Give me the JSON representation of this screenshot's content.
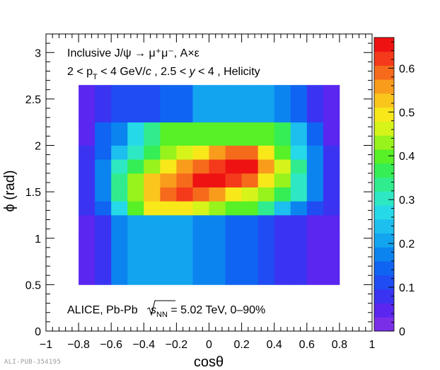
{
  "figure_id": "ALI-PUB-354195",
  "chart_data": {
    "type": "heatmap",
    "title": "",
    "annotations": {
      "line1": "Inclusive J/ψ → μ⁺μ⁻, A×ε",
      "line2_a": "2 < p",
      "line2_sub": "T",
      "line2_b": " < 4 GeV/",
      "line2_c": "c",
      "line2_d": " , 2.5 < ",
      "line2_e": "y",
      "line2_f": " < 4 , Helicity",
      "bottom_a": "ALICE, Pb-Pb ",
      "bottom_s": "s",
      "bottom_sub": "NN",
      "bottom_b": " = 5.02 TeV, 0–90%"
    },
    "xlabel": "cosθ",
    "ylabel": "ϕ (rad)",
    "xlim": [
      -1,
      1
    ],
    "ylim": [
      0,
      3.2
    ],
    "zlim": [
      0,
      0.67
    ],
    "x_ticks": [
      {
        "v": -1,
        "label": "−1"
      },
      {
        "v": -0.8,
        "label": "−0.8"
      },
      {
        "v": -0.6,
        "label": "−0.6"
      },
      {
        "v": -0.4,
        "label": "−0.4"
      },
      {
        "v": -0.2,
        "label": "−0.2"
      },
      {
        "v": 0,
        "label": "0"
      },
      {
        "v": 0.2,
        "label": "0.2"
      },
      {
        "v": 0.4,
        "label": "0.4"
      },
      {
        "v": 0.6,
        "label": "0.6"
      },
      {
        "v": 0.8,
        "label": "0.8"
      },
      {
        "v": 1,
        "label": "1"
      }
    ],
    "y_ticks": [
      {
        "v": 0,
        "label": "0"
      },
      {
        "v": 0.5,
        "label": "0.5"
      },
      {
        "v": 1,
        "label": "1"
      },
      {
        "v": 1.5,
        "label": "1.5"
      },
      {
        "v": 2,
        "label": "2"
      },
      {
        "v": 2.5,
        "label": "2.5"
      },
      {
        "v": 3,
        "label": "3"
      }
    ],
    "z_ticks": [
      {
        "v": 0,
        "label": "0"
      },
      {
        "v": 0.1,
        "label": "0.1"
      },
      {
        "v": 0.2,
        "label": "0.2"
      },
      {
        "v": 0.3,
        "label": "0.3"
      },
      {
        "v": 0.4,
        "label": "0.4"
      },
      {
        "v": 0.5,
        "label": "0.5"
      },
      {
        "v": 0.6,
        "label": "0.6"
      }
    ],
    "x_edges": [
      -0.8,
      -0.7,
      -0.6,
      -0.5,
      -0.4,
      -0.3,
      -0.2,
      -0.1,
      0.0,
      0.1,
      0.2,
      0.3,
      0.4,
      0.5,
      0.6,
      0.7,
      0.8
    ],
    "y_bins": [
      {
        "lo": 0.5,
        "hi": 1.0,
        "values": [
          0.05,
          0.09,
          0.18,
          0.22,
          0.22,
          0.22,
          0.22,
          0.18,
          0.18,
          0.14,
          0.14,
          0.11,
          0.09,
          0.09,
          0.05,
          0.05
        ]
      },
      {
        "lo": 1.0,
        "hi": 1.25,
        "values": [
          0.05,
          0.09,
          0.18,
          0.22,
          0.22,
          0.22,
          0.22,
          0.18,
          0.18,
          0.14,
          0.14,
          0.11,
          0.09,
          0.09,
          0.05,
          0.05
        ]
      },
      {
        "lo": 1.25,
        "hi": 1.4,
        "values": [
          0.09,
          0.15,
          0.28,
          0.4,
          0.48,
          0.48,
          0.48,
          0.46,
          0.43,
          0.4,
          0.4,
          0.33,
          0.24,
          0.16,
          0.12,
          0.07
        ]
      },
      {
        "lo": 1.4,
        "hi": 1.55,
        "values": [
          0.09,
          0.18,
          0.32,
          0.44,
          0.52,
          0.6,
          0.63,
          0.6,
          0.56,
          0.49,
          0.46,
          0.43,
          0.38,
          0.29,
          0.16,
          0.07
        ]
      },
      {
        "lo": 1.55,
        "hi": 1.7,
        "values": [
          0.09,
          0.18,
          0.35,
          0.44,
          0.52,
          0.55,
          0.6,
          0.65,
          0.65,
          0.62,
          0.59,
          0.5,
          0.43,
          0.3,
          0.19,
          0.07
        ]
      },
      {
        "lo": 1.7,
        "hi": 1.85,
        "values": [
          0.09,
          0.16,
          0.3,
          0.38,
          0.44,
          0.5,
          0.55,
          0.58,
          0.62,
          0.65,
          0.65,
          0.55,
          0.45,
          0.32,
          0.19,
          0.07
        ]
      },
      {
        "lo": 1.85,
        "hi": 2.0,
        "values": [
          0.09,
          0.14,
          0.23,
          0.3,
          0.36,
          0.42,
          0.46,
          0.5,
          0.55,
          0.6,
          0.6,
          0.5,
          0.4,
          0.26,
          0.17,
          0.07
        ]
      },
      {
        "lo": 2.0,
        "hi": 2.25,
        "values": [
          0.06,
          0.13,
          0.19,
          0.28,
          0.32,
          0.4,
          0.4,
          0.4,
          0.4,
          0.4,
          0.4,
          0.4,
          0.36,
          0.25,
          0.14,
          0.06
        ]
      },
      {
        "lo": 2.25,
        "hi": 2.65,
        "values": [
          0.05,
          0.07,
          0.1,
          0.1,
          0.12,
          0.14,
          0.14,
          0.2,
          0.2,
          0.2,
          0.2,
          0.2,
          0.16,
          0.14,
          0.09,
          0.05
        ]
      }
    ],
    "grid": false,
    "colorbar": "right"
  }
}
